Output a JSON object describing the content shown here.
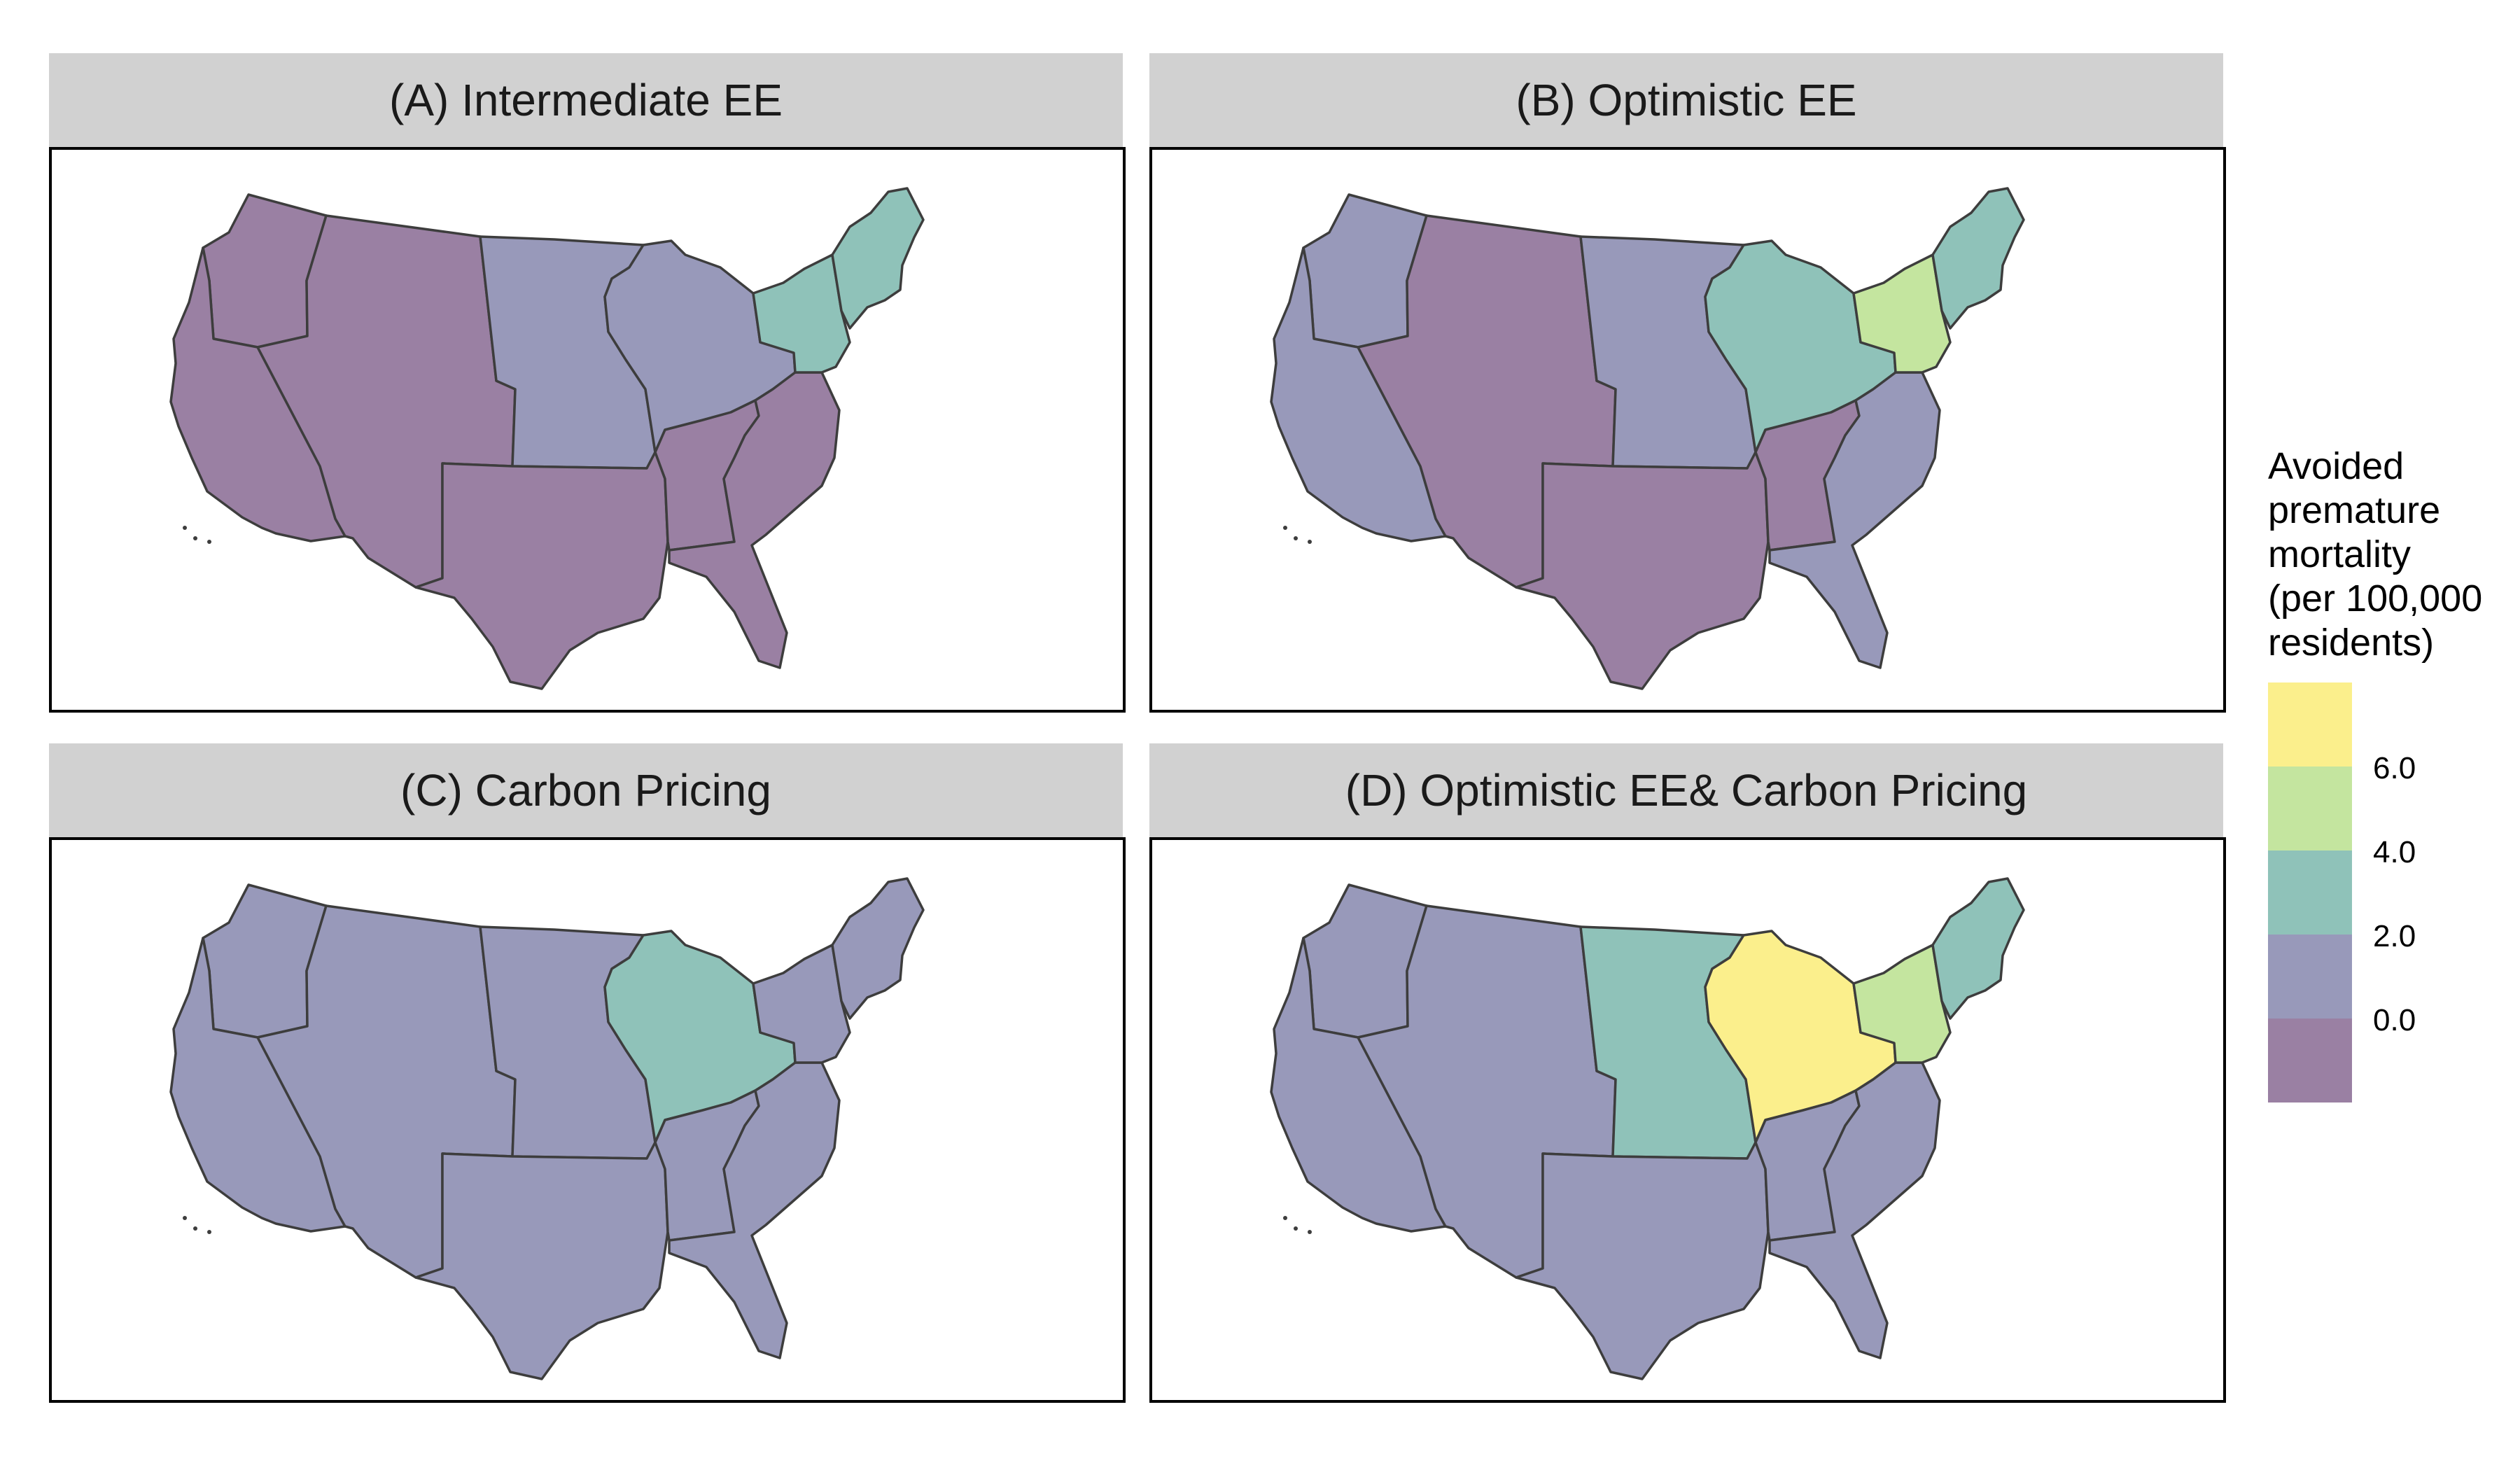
{
  "panels": [
    {
      "title": "(A) Intermediate EE",
      "regions": {
        "west": 0,
        "northwest": 0,
        "rockies": 0,
        "plains_north": 1,
        "south_central": 0,
        "midwest": 1,
        "tenn_valley": 0,
        "southeast": 0,
        "new_york": 2,
        "new_england": 2
      }
    },
    {
      "title": "(B) Optimistic EE",
      "regions": {
        "west": 1,
        "northwest": 1,
        "rockies": 0,
        "plains_north": 1,
        "south_central": 0,
        "midwest": 2,
        "tenn_valley": 0,
        "southeast": 1,
        "new_york": 3,
        "new_england": 2
      }
    },
    {
      "title": "(C) Carbon Pricing",
      "regions": {
        "west": 1,
        "northwest": 1,
        "rockies": 1,
        "plains_north": 1,
        "south_central": 1,
        "midwest": 2,
        "tenn_valley": 1,
        "southeast": 1,
        "new_york": 1,
        "new_england": 1
      }
    },
    {
      "title": "(D) Optimistic EE& Carbon Pricing",
      "regions": {
        "west": 1,
        "northwest": 1,
        "rockies": 1,
        "plains_north": 2,
        "south_central": 1,
        "midwest": 4,
        "tenn_valley": 1,
        "southeast": 1,
        "new_york": 3,
        "new_england": 2
      }
    }
  ],
  "legend": {
    "title": "Avoided\npremature\nmortality\n(per 100,000\nresidents)",
    "bins": [
      {
        "color": "#fbef8c"
      },
      {
        "color": "#c4e59f"
      },
      {
        "color": "#8fc2b9"
      },
      {
        "color": "#9899ba"
      },
      {
        "color": "#9a80a3"
      }
    ],
    "ticks": [
      "6.0",
      "4.0",
      "2.0",
      "0.0"
    ]
  }
}
